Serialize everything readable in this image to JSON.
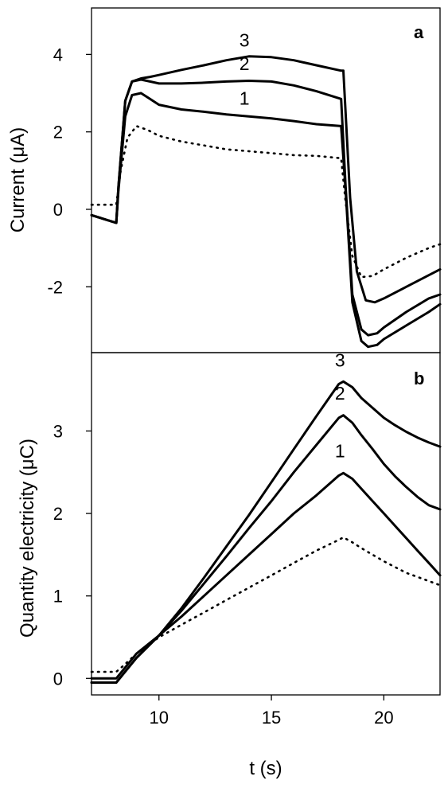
{
  "chart_data": [
    {
      "type": "line",
      "panel": "a",
      "ylabel": "Current (μA)",
      "xlabel": "",
      "xlim": [
        7,
        22.5
      ],
      "ylim": [
        -3.7,
        5.2
      ],
      "yticks": [
        -2,
        0,
        2,
        4
      ],
      "ytick_labels": [
        "-2",
        "0",
        "2",
        "4"
      ],
      "series": [
        {
          "name": "",
          "style": "dotted",
          "x": [
            7,
            8.1,
            8.3,
            8.6,
            9,
            9.5,
            10,
            11,
            12,
            13,
            14,
            15,
            16,
            17,
            18.1,
            18.3,
            18.6,
            19,
            19.5,
            20,
            21,
            22,
            22.5
          ],
          "y": [
            0.12,
            0.12,
            1.0,
            1.85,
            2.15,
            2.05,
            1.9,
            1.75,
            1.65,
            1.55,
            1.5,
            1.45,
            1.4,
            1.38,
            1.32,
            0.2,
            -1.2,
            -1.75,
            -1.72,
            -1.55,
            -1.25,
            -1.0,
            -0.9
          ]
        },
        {
          "name": "1",
          "style": "solid",
          "x": [
            7,
            8.1,
            8.2,
            8.5,
            8.8,
            9.2,
            9.6,
            10,
            11,
            12,
            13,
            14,
            15,
            16,
            17,
            18.1,
            18.3,
            18.6,
            19,
            19.3,
            19.7,
            20,
            21,
            22,
            22.5
          ],
          "y": [
            -0.15,
            -0.35,
            0.5,
            2.4,
            2.95,
            3.0,
            2.85,
            2.7,
            2.58,
            2.52,
            2.45,
            2.4,
            2.35,
            2.28,
            2.2,
            2.15,
            0.5,
            -2.4,
            -3.4,
            -3.55,
            -3.5,
            -3.35,
            -3.0,
            -2.65,
            -2.45
          ]
        },
        {
          "name": "2",
          "style": "solid",
          "x": [
            7,
            8.1,
            8.2,
            8.5,
            8.8,
            9.2,
            9.6,
            10,
            11,
            12,
            13,
            14,
            15,
            16,
            17,
            18.1,
            18.3,
            18.6,
            19,
            19.3,
            19.7,
            20,
            21,
            22,
            22.5
          ],
          "y": [
            -0.15,
            -0.35,
            0.6,
            2.8,
            3.3,
            3.35,
            3.3,
            3.25,
            3.25,
            3.27,
            3.3,
            3.32,
            3.3,
            3.2,
            3.05,
            2.85,
            0.6,
            -2.2,
            -3.1,
            -3.25,
            -3.2,
            -3.05,
            -2.65,
            -2.3,
            -2.2
          ]
        },
        {
          "name": "3",
          "style": "solid",
          "x": [
            7,
            8.1,
            8.2,
            8.5,
            8.8,
            9.2,
            9.6,
            10,
            11,
            12,
            13,
            14,
            15,
            16,
            17,
            18.1,
            18.2,
            18.5,
            18.8,
            19.2,
            19.6,
            20,
            21,
            22,
            22.5
          ],
          "y": [
            -0.15,
            -0.35,
            0.6,
            2.8,
            3.3,
            3.38,
            3.42,
            3.47,
            3.6,
            3.72,
            3.85,
            3.95,
            3.93,
            3.85,
            3.72,
            3.58,
            3.58,
            0.3,
            -1.6,
            -2.35,
            -2.4,
            -2.3,
            -2.0,
            -1.7,
            -1.55
          ]
        }
      ],
      "annotations": [
        {
          "text": "1",
          "x": 13.8,
          "y": 2.7
        },
        {
          "text": "2",
          "x": 13.8,
          "y": 3.6
        },
        {
          "text": "3",
          "x": 13.8,
          "y": 4.2
        }
      ]
    },
    {
      "type": "line",
      "panel": "b",
      "ylabel": "Quantity electricity  (μC)",
      "xlabel": "t (s)",
      "xlim": [
        7,
        22.5
      ],
      "ylim": [
        -0.2,
        3.95
      ],
      "yticks": [
        0,
        1,
        2,
        3
      ],
      "ytick_labels": [
        "0",
        "1",
        "2",
        "3"
      ],
      "xticks": [
        10,
        15,
        20
      ],
      "xtick_labels": [
        "10",
        "15",
        "20"
      ],
      "series": [
        {
          "name": "",
          "style": "dotted",
          "x": [
            7,
            8.1,
            8.4,
            9,
            10,
            11,
            12,
            13,
            14,
            15,
            16,
            17,
            18,
            18.2,
            18.6,
            19,
            19.5,
            20,
            20.5,
            21,
            21.5,
            22,
            22.5
          ],
          "y": [
            0.08,
            0.08,
            0.15,
            0.3,
            0.5,
            0.65,
            0.8,
            0.95,
            1.1,
            1.25,
            1.4,
            1.55,
            1.68,
            1.71,
            1.65,
            1.58,
            1.5,
            1.42,
            1.35,
            1.28,
            1.23,
            1.18,
            1.13
          ]
        },
        {
          "name": "1",
          "style": "solid",
          "x": [
            7,
            8.1,
            8.4,
            9,
            10,
            11,
            12,
            13,
            14,
            15,
            16,
            17,
            18,
            18.2,
            18.6,
            19,
            19.5,
            20,
            20.5,
            21,
            21.5,
            22,
            22.5
          ],
          "y": [
            0.0,
            0.0,
            0.1,
            0.3,
            0.52,
            0.75,
            1.0,
            1.25,
            1.5,
            1.75,
            2.0,
            2.22,
            2.46,
            2.49,
            2.42,
            2.3,
            2.15,
            2.0,
            1.85,
            1.7,
            1.55,
            1.4,
            1.25
          ]
        },
        {
          "name": "2",
          "style": "solid",
          "x": [
            7,
            8.1,
            8.4,
            9,
            10,
            11,
            12,
            13,
            14,
            15,
            16,
            17,
            18,
            18.2,
            18.6,
            19,
            19.5,
            20,
            20.5,
            21,
            21.5,
            22,
            22.5
          ],
          "y": [
            -0.05,
            -0.05,
            0.05,
            0.25,
            0.52,
            0.82,
            1.15,
            1.48,
            1.82,
            2.15,
            2.5,
            2.83,
            3.16,
            3.19,
            3.1,
            2.95,
            2.78,
            2.6,
            2.45,
            2.32,
            2.2,
            2.1,
            2.05
          ]
        },
        {
          "name": "3",
          "style": "solid",
          "x": [
            7,
            8.1,
            8.4,
            9,
            10,
            11,
            12,
            13,
            14,
            15,
            16,
            17,
            18,
            18.2,
            18.6,
            19,
            19.5,
            20,
            20.5,
            21,
            21.5,
            22,
            22.5
          ],
          "y": [
            -0.05,
            -0.05,
            0.05,
            0.25,
            0.52,
            0.85,
            1.22,
            1.6,
            1.98,
            2.38,
            2.78,
            3.18,
            3.57,
            3.6,
            3.53,
            3.4,
            3.28,
            3.16,
            3.07,
            2.99,
            2.92,
            2.86,
            2.81
          ]
        }
      ],
      "annotations": [
        {
          "text": "1",
          "x": 18.05,
          "y": 2.68
        },
        {
          "text": "2",
          "x": 18.05,
          "y": 3.38
        },
        {
          "text": "3",
          "x": 18.05,
          "y": 3.78
        }
      ]
    }
  ]
}
